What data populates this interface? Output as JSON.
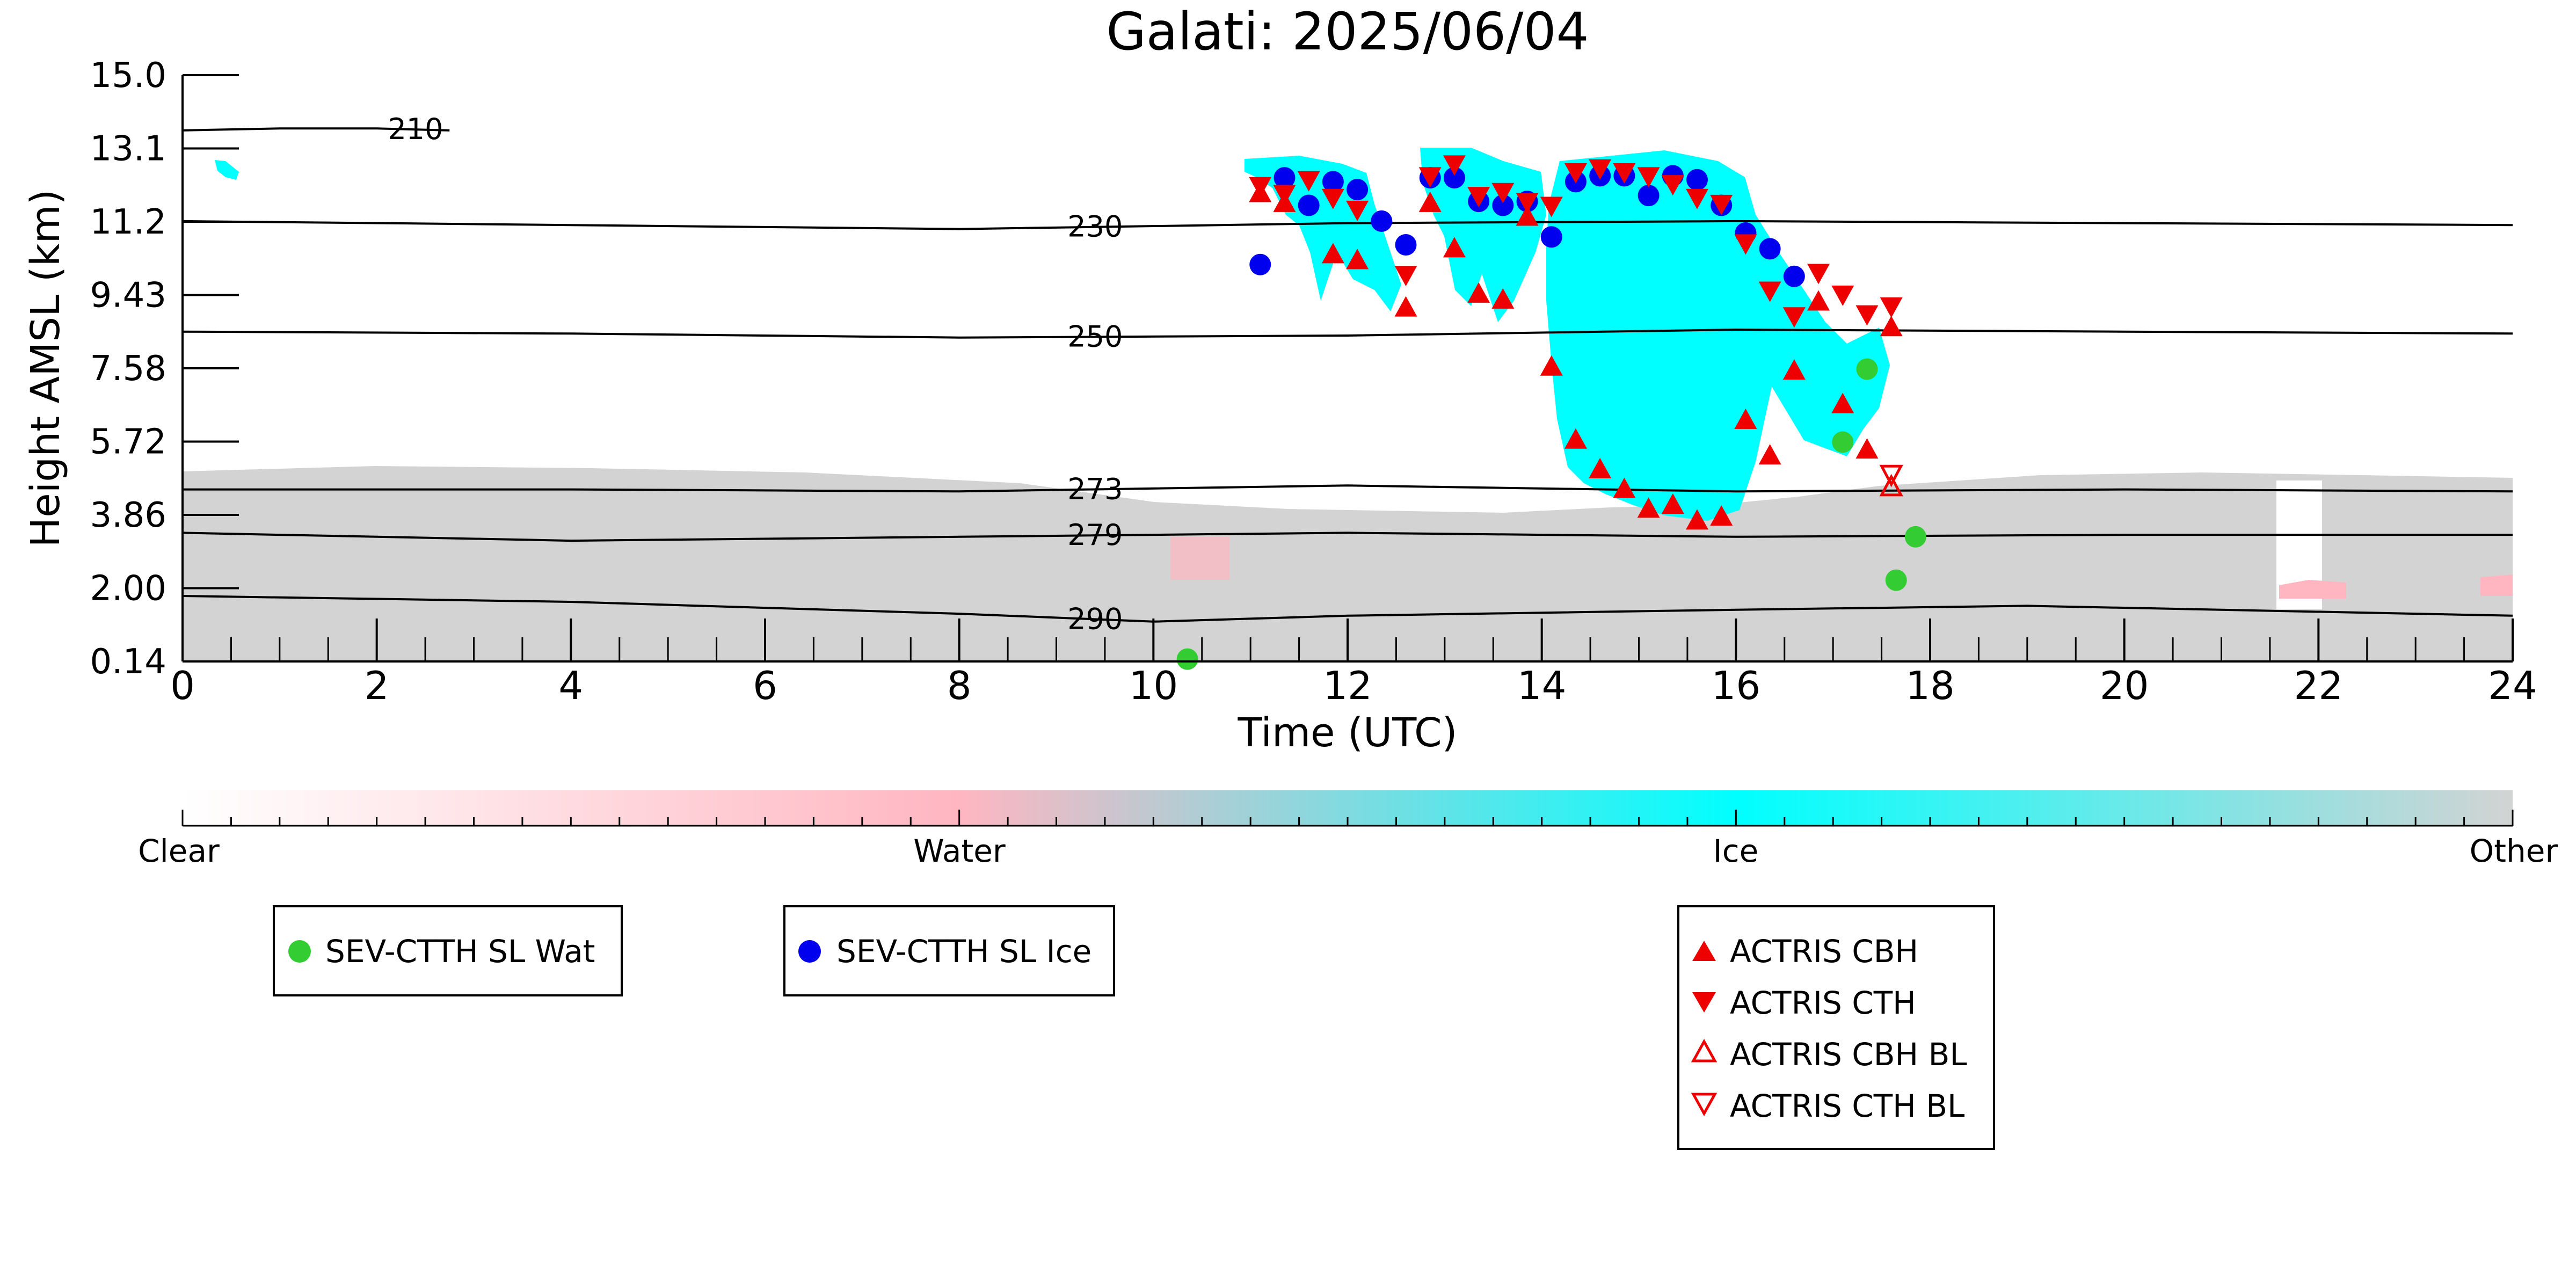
{
  "chart_data": {
    "type": "scatter",
    "title": "Galati: 2025/06/04",
    "xlabel": "Time (UTC)",
    "ylabel": "Height AMSL (km)",
    "xlim": [
      0,
      24
    ],
    "ylim": [
      0.14,
      15.0
    ],
    "x_ticks": [
      "0",
      "2",
      "4",
      "6",
      "8",
      "10",
      "12",
      "14",
      "16",
      "18",
      "20",
      "22",
      "24"
    ],
    "y_ticks": [
      "0.14",
      "2.00",
      "3.86",
      "5.72",
      "7.58",
      "9.43",
      "11.2",
      "13.1",
      "15.0"
    ],
    "colorbar": {
      "labels": [
        "Clear",
        "Water",
        "Ice",
        "Other"
      ],
      "colors": {
        "clear": "#ffffff",
        "water": "#ffb6c1",
        "ice": "#00ffff",
        "other": "#d3d3d3"
      }
    },
    "isotherms": [
      {
        "label": "210",
        "label_x": 2.4,
        "points": [
          [
            0,
            13.6
          ],
          [
            1.0,
            13.65
          ],
          [
            2.0,
            13.65
          ],
          [
            2.75,
            13.6
          ]
        ]
      },
      {
        "label": "230",
        "label_x": 9.4,
        "points": [
          [
            0,
            11.3
          ],
          [
            4,
            11.2
          ],
          [
            8,
            11.1
          ],
          [
            12,
            11.25
          ],
          [
            16,
            11.3
          ],
          [
            20,
            11.25
          ],
          [
            24,
            11.2
          ]
        ]
      },
      {
        "label": "250",
        "label_x": 9.4,
        "points": [
          [
            0,
            8.5
          ],
          [
            4,
            8.45
          ],
          [
            8,
            8.35
          ],
          [
            12,
            8.4
          ],
          [
            16,
            8.55
          ],
          [
            20,
            8.5
          ],
          [
            24,
            8.45
          ]
        ]
      },
      {
        "label": "273",
        "label_x": 9.4,
        "points": [
          [
            0,
            4.5
          ],
          [
            4,
            4.5
          ],
          [
            8,
            4.45
          ],
          [
            12,
            4.6
          ],
          [
            16,
            4.45
          ],
          [
            20,
            4.5
          ],
          [
            24,
            4.45
          ]
        ]
      },
      {
        "label": "279",
        "label_x": 9.4,
        "points": [
          [
            0,
            3.4
          ],
          [
            4,
            3.2
          ],
          [
            8,
            3.3
          ],
          [
            12,
            3.4
          ],
          [
            16,
            3.3
          ],
          [
            20,
            3.35
          ],
          [
            24,
            3.35
          ]
        ]
      },
      {
        "label": "290",
        "label_x": 9.4,
        "points": [
          [
            0,
            1.8
          ],
          [
            4,
            1.65
          ],
          [
            8,
            1.35
          ],
          [
            10,
            1.15
          ],
          [
            12,
            1.3
          ],
          [
            16,
            1.45
          ],
          [
            19,
            1.55
          ],
          [
            24,
            1.3
          ]
        ]
      }
    ],
    "series": [
      {
        "name": "SEV-CTTH SL Wat",
        "marker": "circle",
        "color": "#33cc33",
        "points": [
          [
            10.35,
            0.2
          ],
          [
            17.1,
            5.7
          ],
          [
            17.35,
            7.55
          ],
          [
            17.65,
            2.2
          ],
          [
            17.85,
            3.3
          ]
        ]
      },
      {
        "name": "SEV-CTTH SL Ice",
        "marker": "circle",
        "color": "#0000ee",
        "points": [
          [
            11.1,
            10.2
          ],
          [
            11.35,
            12.4
          ],
          [
            11.6,
            11.7
          ],
          [
            11.85,
            12.3
          ],
          [
            12.1,
            12.1
          ],
          [
            12.35,
            11.3
          ],
          [
            12.6,
            10.7
          ],
          [
            12.85,
            12.4
          ],
          [
            13.1,
            12.4
          ],
          [
            13.35,
            11.8
          ],
          [
            13.6,
            11.7
          ],
          [
            13.85,
            11.8
          ],
          [
            14.1,
            10.9
          ],
          [
            14.35,
            12.3
          ],
          [
            14.6,
            12.45
          ],
          [
            14.85,
            12.45
          ],
          [
            15.1,
            11.95
          ],
          [
            15.35,
            12.45
          ],
          [
            15.6,
            12.35
          ],
          [
            15.85,
            11.7
          ],
          [
            16.1,
            11.0
          ],
          [
            16.35,
            10.6
          ],
          [
            16.6,
            9.9
          ]
        ]
      },
      {
        "name": "ACTRIS CBH",
        "marker": "triangle-up",
        "color": "#ee0000",
        "points": [
          [
            11.1,
            12.0
          ],
          [
            11.35,
            11.75
          ],
          [
            11.85,
            10.45
          ],
          [
            12.1,
            10.3
          ],
          [
            12.6,
            9.1
          ],
          [
            12.85,
            11.75
          ],
          [
            13.1,
            10.6
          ],
          [
            13.35,
            9.45
          ],
          [
            13.6,
            9.3
          ],
          [
            13.85,
            11.4
          ],
          [
            14.1,
            7.6
          ],
          [
            14.35,
            5.75
          ],
          [
            14.6,
            5.0
          ],
          [
            14.85,
            4.5
          ],
          [
            15.1,
            4.0
          ],
          [
            15.35,
            4.1
          ],
          [
            15.6,
            3.7
          ],
          [
            15.85,
            3.8
          ],
          [
            16.1,
            6.25
          ],
          [
            16.35,
            5.35
          ],
          [
            16.6,
            7.5
          ],
          [
            16.85,
            9.25
          ],
          [
            17.1,
            6.65
          ],
          [
            17.35,
            5.5
          ],
          [
            17.6,
            8.6
          ]
        ]
      },
      {
        "name": "ACTRIS CTH",
        "marker": "triangle-down",
        "color": "#ee0000",
        "points": [
          [
            11.1,
            12.2
          ],
          [
            11.35,
            12.0
          ],
          [
            11.6,
            12.35
          ],
          [
            11.85,
            11.9
          ],
          [
            12.1,
            11.6
          ],
          [
            12.6,
            9.95
          ],
          [
            12.85,
            12.45
          ],
          [
            13.1,
            12.75
          ],
          [
            13.35,
            11.95
          ],
          [
            13.6,
            12.05
          ],
          [
            13.85,
            11.8
          ],
          [
            14.1,
            11.7
          ],
          [
            14.35,
            12.55
          ],
          [
            14.6,
            12.65
          ],
          [
            14.85,
            12.55
          ],
          [
            15.1,
            12.45
          ],
          [
            15.35,
            12.25
          ],
          [
            15.6,
            11.9
          ],
          [
            15.85,
            11.75
          ],
          [
            16.1,
            10.75
          ],
          [
            16.35,
            9.55
          ],
          [
            16.6,
            8.9
          ],
          [
            16.85,
            10.0
          ],
          [
            17.1,
            9.45
          ],
          [
            17.35,
            8.95
          ],
          [
            17.6,
            9.15
          ]
        ]
      },
      {
        "name": "ACTRIS CBH BL",
        "marker": "triangle-up-open",
        "color": "#ee0000",
        "points": [
          [
            17.6,
            4.55
          ]
        ]
      },
      {
        "name": "ACTRIS CTH BL",
        "marker": "triangle-down-open",
        "color": "#ee0000",
        "points": [
          [
            17.6,
            4.9
          ]
        ]
      }
    ]
  }
}
